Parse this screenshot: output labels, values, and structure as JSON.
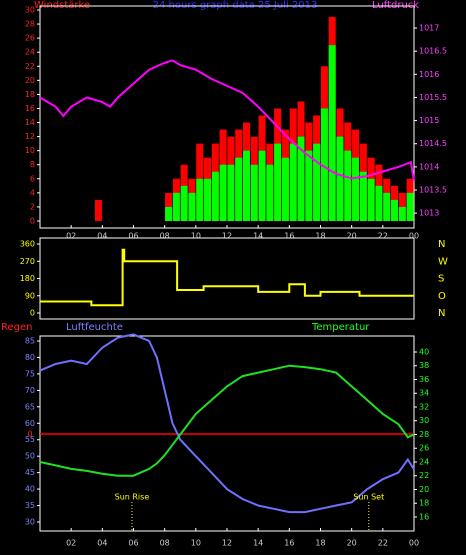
{
  "chart_data": [
    {
      "type": "bar",
      "title": "24 hours graph data  25 Juli 2013",
      "ylabel": "Windstärke",
      "y2label": "Luftdruck",
      "xlim": [
        0,
        24
      ],
      "xticks": [
        {
          "value": 2,
          "label": "02"
        },
        {
          "value": 4,
          "label": "04"
        },
        {
          "value": 6,
          "label": "06"
        },
        {
          "value": 8,
          "label": "08"
        },
        10,
        12,
        14,
        16,
        18,
        20,
        22,
        {
          "value": 24,
          "label": "00"
        }
      ],
      "ylim": [
        0,
        30
      ],
      "yticks": [
        0,
        2,
        4,
        6,
        8,
        10,
        12,
        14,
        16,
        18,
        20,
        22,
        24,
        26,
        28,
        30
      ],
      "y2lim": [
        1012.83,
        1017.39
      ],
      "y2ticks": [
        1013,
        1013.5,
        1014,
        1014.5,
        1015,
        1015.5,
        1016,
        1016.5,
        1017
      ],
      "axis_colors": {
        "y": "#ff2020",
        "y2": "#ff40ff"
      },
      "series": [
        {
          "type": "bar",
          "color": "#ff0000",
          "x": [
            0.25,
            0.75,
            1.25,
            1.75,
            2.25,
            2.75,
            3.25,
            3.75,
            4.25,
            4.75,
            5.25,
            5.75,
            6.25,
            6.75,
            7.25,
            7.75,
            8.25,
            8.75,
            9.25,
            9.75,
            10.25,
            10.75,
            11.25,
            11.75,
            12.25,
            12.75,
            13.25,
            13.75,
            14.25,
            14.75,
            15.25,
            15.75,
            16.25,
            16.75,
            17.25,
            17.75,
            18.25,
            18.75,
            19.25,
            19.75,
            20.25,
            20.75,
            21.25,
            21.75,
            22.25,
            22.75,
            23.25,
            23.75
          ],
          "values": [
            0,
            0,
            0,
            0,
            0,
            0,
            0,
            3,
            0,
            0,
            0,
            0,
            0,
            0,
            0,
            0,
            4,
            6,
            8,
            6,
            11,
            9,
            11,
            13,
            12,
            13,
            14,
            12,
            15,
            11,
            16,
            13,
            16,
            17,
            14,
            15,
            22,
            29,
            16,
            14,
            13,
            11,
            9,
            8,
            6,
            5,
            4,
            6
          ]
        },
        {
          "type": "bar",
          "color": "#00ff00",
          "x": [
            0.25,
            0.75,
            1.25,
            1.75,
            2.25,
            2.75,
            3.25,
            3.75,
            4.25,
            4.75,
            5.25,
            5.75,
            6.25,
            6.75,
            7.25,
            7.75,
            8.25,
            8.75,
            9.25,
            9.75,
            10.25,
            10.75,
            11.25,
            11.75,
            12.25,
            12.75,
            13.25,
            13.75,
            14.25,
            14.75,
            15.25,
            15.75,
            16.25,
            16.75,
            17.25,
            17.75,
            18.25,
            18.75,
            19.25,
            19.75,
            20.25,
            20.75,
            21.25,
            21.75,
            22.25,
            22.75,
            23.25,
            23.75
          ],
          "values": [
            0,
            0,
            0,
            0,
            0,
            0,
            0,
            0,
            0,
            0,
            0,
            0,
            0,
            0,
            0,
            0,
            2,
            4,
            5,
            4,
            6,
            6,
            7,
            8,
            8,
            9,
            10,
            8,
            10,
            8,
            11,
            9,
            11,
            12,
            10,
            11,
            16,
            25,
            12,
            10,
            9,
            7,
            6,
            5,
            4,
            3,
            2,
            4
          ]
        },
        {
          "type": "line",
          "axis": "y2",
          "color": "#ff00ff",
          "x": [
            0,
            1,
            1.5,
            2,
            3,
            4,
            4.5,
            5,
            6,
            7,
            8,
            8.5,
            9,
            10,
            11,
            12,
            13,
            14,
            15,
            16,
            17,
            18,
            19,
            20,
            21,
            22,
            23,
            23.8,
            24
          ],
          "values": [
            1015.5,
            1015.3,
            1015.1,
            1015.3,
            1015.5,
            1015.4,
            1015.3,
            1015.5,
            1015.8,
            1016.1,
            1016.25,
            1016.3,
            1016.2,
            1016.1,
            1015.9,
            1015.75,
            1015.6,
            1015.3,
            1014.95,
            1014.6,
            1014.3,
            1014.05,
            1013.85,
            1013.75,
            1013.8,
            1013.9,
            1014.0,
            1014.1,
            1013.7
          ]
        }
      ]
    },
    {
      "type": "line",
      "xlim": [
        0,
        24
      ],
      "ylim": [
        0,
        360
      ],
      "yticks": [
        360,
        270,
        180,
        90,
        0
      ],
      "direction_labels": [
        "N",
        "W",
        "S",
        "O",
        "N"
      ],
      "axis_colors": {
        "y": "#ffff00",
        "y2": "#ffff00"
      },
      "series": [
        {
          "type": "line",
          "color": "#ffff00",
          "x": [
            0,
            3.3,
            3.3,
            5.3,
            5.3,
            5.4,
            5.4,
            8.8,
            8.8,
            10.5,
            10.5,
            14,
            14,
            16,
            16,
            17,
            17,
            18,
            18,
            20.5,
            20.5,
            24
          ],
          "values": [
            60,
            60,
            40,
            40,
            330,
            330,
            270,
            270,
            120,
            120,
            140,
            140,
            110,
            110,
            150,
            150,
            90,
            90,
            110,
            110,
            90,
            90
          ]
        }
      ]
    },
    {
      "type": "line",
      "ylabel": "Luftfeuchte",
      "y2label": "Temperatur",
      "rain_label": "Regen",
      "rain_ticks": [
        0
      ],
      "xlim": [
        0,
        24
      ],
      "xticks": [
        {
          "value": 2,
          "label": "02"
        },
        {
          "value": 4,
          "label": "04"
        },
        {
          "value": 6,
          "label": "06"
        },
        {
          "value": 8,
          "label": "08"
        },
        10,
        12,
        14,
        16,
        18,
        20,
        22,
        {
          "value": 24,
          "label": "00"
        }
      ],
      "ylim": [
        30,
        85
      ],
      "yticks": [
        30,
        35,
        40,
        45,
        50,
        55,
        60,
        65,
        70,
        75,
        80,
        85
      ],
      "y2lim": [
        15.27,
        41.6
      ],
      "y2ticks": [
        16,
        18,
        20,
        22,
        24,
        26,
        28,
        30,
        32,
        34,
        36,
        38,
        40
      ],
      "axis_colors": {
        "y": "#8080ff",
        "y2": "#20ff20"
      },
      "annotations": [
        {
          "text": "Sun Rise",
          "x": 5.9
        },
        {
          "text": "Sun Set",
          "x": 21.1
        }
      ],
      "series": [
        {
          "type": "line",
          "color": "#7070ff",
          "x": [
            0,
            1,
            2,
            3,
            4,
            5,
            6,
            7,
            7.5,
            8,
            8.5,
            9,
            10,
            11,
            12,
            13,
            14,
            15,
            16,
            17,
            18,
            19,
            20,
            21,
            22,
            23,
            23.6,
            24
          ],
          "values": [
            76,
            78,
            79,
            78,
            83,
            86,
            87,
            85,
            80,
            70,
            60,
            55,
            50,
            45,
            40,
            37,
            35,
            34,
            33,
            33,
            34,
            35,
            36,
            40,
            43,
            45,
            49,
            46
          ]
        },
        {
          "type": "line",
          "axis": "y2",
          "color": "#20e020",
          "x": [
            0,
            1,
            2,
            3,
            4,
            5,
            6,
            7,
            7.5,
            8,
            8.5,
            9,
            10,
            11,
            12,
            13,
            14,
            15,
            16,
            17,
            18,
            19,
            20,
            21,
            22,
            23,
            23.6,
            24
          ],
          "values": [
            24,
            23.5,
            23,
            22.7,
            22.3,
            22,
            22,
            23,
            23.8,
            25,
            26.5,
            28,
            31,
            33,
            35,
            36.5,
            37,
            37.5,
            38,
            37.8,
            37.5,
            37,
            35,
            33,
            31,
            29.5,
            27.6,
            28
          ]
        }
      ]
    }
  ]
}
